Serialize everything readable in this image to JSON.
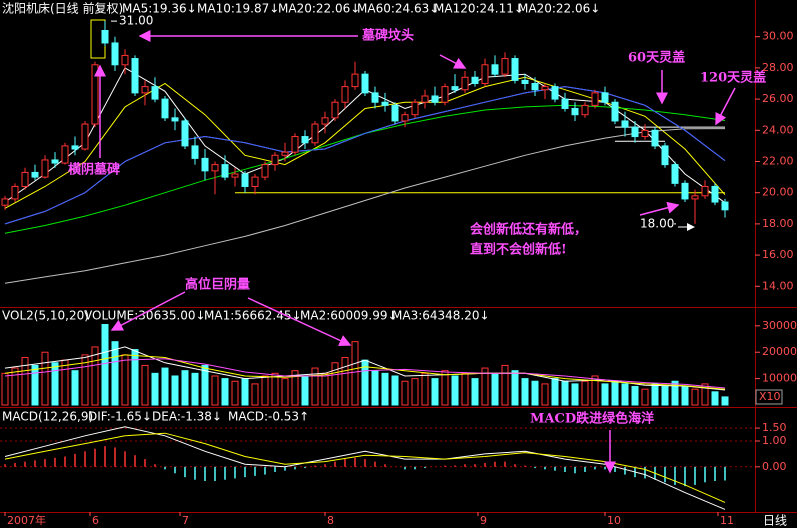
{
  "chart_data": [
    {
      "type": "candlestick",
      "title": "沈阳机床(日线 前复权)",
      "ylim": [
        12.8,
        31.2
      ],
      "yticks": [
        {
          "value": 14,
          "label": "14.00"
        },
        {
          "value": 16,
          "label": "16.00"
        },
        {
          "value": 18,
          "label": "18.00"
        },
        {
          "value": 20,
          "label": "20.00"
        },
        {
          "value": 22,
          "label": "22.00"
        },
        {
          "value": 24,
          "label": "24.00"
        },
        {
          "value": 26,
          "label": "26.00"
        },
        {
          "value": 28,
          "label": "28.00"
        },
        {
          "value": 30,
          "label": "30.00"
        }
      ],
      "xticks": [
        {
          "value": 0,
          "label": "2007年"
        },
        {
          "value": 8.5,
          "label": "6"
        },
        {
          "value": 17.5,
          "label": "7"
        },
        {
          "value": 32,
          "label": "8"
        },
        {
          "value": 47.3,
          "label": "9"
        },
        {
          "value": 60,
          "label": "10"
        },
        {
          "value": 71.3,
          "label": "11"
        }
      ],
      "period": "日线",
      "up_color": "#ff3232",
      "down_color": "#54ffff",
      "candles": [
        [
          19.2,
          19.8,
          18.9,
          19.6
        ],
        [
          19.6,
          20.6,
          19.4,
          20.4
        ],
        [
          20.4,
          21.6,
          20.2,
          21.3
        ],
        [
          21.3,
          21.8,
          20.8,
          21.0
        ],
        [
          21.0,
          22.4,
          20.9,
          22.1
        ],
        [
          22.1,
          22.6,
          21.6,
          21.9
        ],
        [
          21.9,
          23.2,
          21.8,
          23.0
        ],
        [
          23.0,
          23.6,
          22.4,
          22.8
        ],
        [
          22.8,
          24.6,
          22.7,
          24.4
        ],
        [
          24.4,
          28.4,
          24.2,
          28.2
        ],
        [
          30.4,
          31.0,
          29.4,
          29.6
        ],
        [
          29.6,
          30.0,
          27.8,
          28.2
        ],
        [
          28.2,
          29.2,
          27.6,
          28.8
        ],
        [
          28.6,
          28.8,
          26.2,
          26.4
        ],
        [
          26.4,
          27.2,
          25.6,
          26.8
        ],
        [
          26.8,
          27.4,
          25.8,
          26.0
        ],
        [
          26.0,
          26.2,
          24.6,
          24.8
        ],
        [
          24.8,
          25.4,
          24.0,
          24.6
        ],
        [
          24.6,
          24.8,
          22.8,
          23.0
        ],
        [
          23.0,
          23.6,
          21.8,
          22.2
        ],
        [
          22.2,
          22.8,
          20.8,
          21.4
        ],
        [
          21.4,
          22.0,
          19.9,
          21.8
        ],
        [
          21.8,
          22.4,
          20.8,
          21.0
        ],
        [
          21.0,
          21.6,
          20.4,
          21.2
        ],
        [
          21.2,
          21.4,
          20.0,
          20.4
        ],
        [
          20.4,
          21.2,
          19.9,
          21.0
        ],
        [
          21.0,
          22.0,
          20.8,
          21.8
        ],
        [
          21.8,
          22.6,
          21.4,
          22.4
        ],
        [
          22.4,
          23.2,
          22.0,
          22.6
        ],
        [
          22.6,
          23.8,
          22.4,
          23.6
        ],
        [
          23.6,
          24.0,
          22.8,
          23.2
        ],
        [
          23.2,
          24.6,
          23.0,
          24.4
        ],
        [
          24.4,
          25.2,
          23.8,
          24.8
        ],
        [
          24.8,
          26.0,
          24.6,
          25.8
        ],
        [
          25.8,
          27.2,
          25.4,
          26.8
        ],
        [
          26.8,
          28.4,
          26.6,
          27.6
        ],
        [
          27.6,
          27.8,
          26.2,
          26.4
        ],
        [
          26.4,
          26.8,
          25.4,
          25.8
        ],
        [
          25.8,
          26.4,
          25.2,
          25.6
        ],
        [
          25.6,
          25.8,
          24.4,
          24.6
        ],
        [
          24.6,
          25.2,
          24.2,
          25.0
        ],
        [
          25.0,
          26.0,
          24.8,
          25.8
        ],
        [
          25.8,
          26.6,
          25.4,
          26.2
        ],
        [
          26.2,
          26.8,
          25.6,
          25.8
        ],
        [
          25.8,
          27.0,
          25.6,
          26.8
        ],
        [
          26.8,
          27.6,
          26.4,
          26.6
        ],
        [
          26.6,
          27.8,
          26.4,
          27.4
        ],
        [
          27.4,
          27.8,
          26.8,
          27.0
        ],
        [
          27.0,
          28.6,
          26.8,
          28.2
        ],
        [
          28.2,
          28.8,
          27.4,
          27.6
        ],
        [
          27.6,
          29.0,
          27.4,
          28.6
        ],
        [
          28.6,
          28.8,
          27.0,
          27.2
        ],
        [
          27.2,
          27.6,
          26.6,
          27.0
        ],
        [
          27.0,
          27.4,
          26.2,
          26.6
        ],
        [
          26.6,
          27.0,
          26.0,
          26.8
        ],
        [
          26.8,
          27.0,
          25.8,
          26.0
        ],
        [
          26.0,
          26.4,
          25.2,
          25.4
        ],
        [
          25.4,
          25.8,
          24.6,
          25.0
        ],
        [
          25.0,
          25.8,
          24.8,
          25.6
        ],
        [
          25.6,
          26.6,
          25.4,
          26.4
        ],
        [
          26.4,
          26.8,
          25.6,
          25.8
        ],
        [
          25.8,
          26.0,
          24.4,
          24.6
        ],
        [
          24.6,
          25.2,
          23.6,
          24.2
        ],
        [
          24.2,
          24.6,
          23.2,
          23.6
        ],
        [
          23.6,
          24.4,
          23.4,
          24.0
        ],
        [
          24.0,
          24.2,
          22.8,
          23.0
        ],
        [
          23.0,
          23.2,
          21.6,
          21.8
        ],
        [
          21.8,
          22.0,
          20.4,
          20.6
        ],
        [
          20.6,
          20.8,
          19.4,
          19.6
        ],
        [
          19.6,
          20.2,
          18.0,
          19.8
        ],
        [
          19.8,
          20.8,
          19.6,
          20.4
        ],
        [
          20.4,
          20.6,
          19.2,
          19.4
        ],
        [
          19.4,
          19.6,
          18.4,
          18.9
        ]
      ],
      "ma_x": [
        0,
        4,
        8,
        12,
        16,
        20,
        24,
        28,
        32,
        36,
        40,
        44,
        48,
        52,
        56,
        60,
        64,
        68,
        72
      ],
      "series": [
        {
          "name": "MA5:19.36↓",
          "color": "#ffffff",
          "values": [
            19.4,
            21.2,
            23.2,
            28.0,
            26.5,
            23.0,
            21.2,
            22.2,
            24.2,
            26.6,
            25.4,
            26.2,
            27.4,
            27.6,
            26.0,
            25.8,
            24.0,
            21.2,
            19.36
          ]
        },
        {
          "name": "MA10:19.87↓",
          "color": "#ffff00",
          "values": [
            19.0,
            20.4,
            22.0,
            25.5,
            27.0,
            25.0,
            22.4,
            21.8,
            23.2,
            25.4,
            25.8,
            25.8,
            26.8,
            27.4,
            26.6,
            25.8,
            24.9,
            22.8,
            19.87
          ]
        },
        {
          "name": "MA20:22.06↓",
          "color": "#ff80ff",
          "values": [
            18.0,
            18.8,
            20.0,
            22.0,
            23.2,
            23.6,
            23.2,
            22.6,
            22.8,
            23.8,
            24.6,
            25.2,
            25.8,
            26.4,
            26.8,
            26.4,
            25.6,
            24.0,
            22.06
          ]
        },
        {
          "name": "MA60:24.63↓",
          "color": "#00e600",
          "values": [
            17.4,
            17.9,
            18.5,
            19.2,
            20.0,
            20.8,
            21.5,
            22.2,
            23.0,
            23.8,
            24.4,
            24.9,
            25.3,
            25.5,
            25.6,
            25.5,
            25.3,
            25.0,
            24.63
          ]
        },
        {
          "name": "MA120:24.11↓",
          "color": "#c0c0c0",
          "values": [
            14.2,
            14.6,
            15.0,
            15.5,
            16.0,
            16.6,
            17.2,
            17.9,
            18.7,
            19.5,
            20.3,
            21.0,
            21.7,
            22.4,
            23.0,
            23.5,
            23.9,
            24.1,
            24.11
          ]
        },
        {
          "name": "MA20:22.06↓",
          "color": "#3366ff",
          "values": [
            18.0,
            18.8,
            20.0,
            22.0,
            23.2,
            23.6,
            23.2,
            22.6,
            22.8,
            23.8,
            24.6,
            25.2,
            25.8,
            26.4,
            26.8,
            26.4,
            25.6,
            24.0,
            22.06
          ]
        }
      ],
      "hlines": [
        {
          "value": 20.0,
          "from": 23,
          "to": 72,
          "color": "#ffff00"
        },
        {
          "value": 24.2,
          "from": 61,
          "to": 72,
          "color": "#ffffff"
        },
        {
          "value": 23.3,
          "from": 61,
          "to": 66,
          "color": "#ffffff"
        }
      ],
      "high_label": {
        "value": 31.0,
        "label": "31.00"
      },
      "low_label": {
        "value": 18.0,
        "label": "18.00"
      },
      "annotations": [
        "墓碑坟头",
        "横阴墓碑",
        "60天灵盖",
        "120天灵盖",
        "会创新低还有新低，",
        "直到不会创新低!"
      ]
    },
    {
      "type": "volume",
      "title": "VOL2(5,10,20)",
      "volume_label": "VOLUME:30635.00↓",
      "unit_label": "X10",
      "ylim": [
        0,
        36000
      ],
      "yticks": [
        10000,
        20000,
        30000
      ],
      "values": [
        12000,
        14000,
        18000,
        15000,
        20000,
        16000,
        17000,
        13000,
        19000,
        22000,
        30500,
        24000,
        19000,
        21000,
        15000,
        12000,
        14000,
        11000,
        13000,
        12000,
        15000,
        11000,
        10000,
        9000,
        10000,
        8000,
        11000,
        12000,
        10000,
        13000,
        11000,
        14000,
        12000,
        16000,
        18000,
        24000,
        17000,
        13000,
        12000,
        11000,
        9000,
        10000,
        12000,
        10000,
        13000,
        11000,
        12000,
        10000,
        14000,
        12000,
        15000,
        13000,
        10000,
        9000,
        8000,
        10000,
        9000,
        8000,
        9000,
        11000,
        8000,
        9000,
        8000,
        7000,
        6000,
        8000,
        7000,
        9000,
        7000,
        6000,
        8000,
        5000,
        3063.5
      ],
      "series": [
        {
          "name": "MA1:56662.45↓",
          "color": "#ffffff",
          "values": [
            14000,
            16000,
            18000,
            22000,
            16000,
            13000,
            10000,
            11000,
            12000,
            17000,
            11000,
            11500,
            12000,
            12000,
            9000,
            9500,
            7500,
            7200,
            5666.245
          ]
        },
        {
          "name": "MA2:60009.99↓",
          "color": "#ffff00",
          "values": [
            12000,
            14000,
            16000,
            19000,
            18000,
            14000,
            11000,
            10500,
            11500,
            14500,
            13000,
            11500,
            12000,
            12000,
            10000,
            9000,
            8000,
            7300,
            6000.999
          ]
        },
        {
          "name": "MA3:64348.20↓",
          "color": "#ff50ff",
          "values": [
            11000,
            12500,
            14500,
            17000,
            17500,
            15500,
            12500,
            11000,
            11000,
            13000,
            13500,
            12500,
            12000,
            12000,
            11000,
            9500,
            8500,
            7800,
            6434.82
          ]
        }
      ],
      "annotations": [
        "高位巨阴量"
      ]
    },
    {
      "type": "macd",
      "title": "MACD(12,26,9)",
      "hist_label": "MACD:-0.53↑",
      "hist_label_color": "#ff50ff",
      "ylim": [
        -1.75,
        2.2
      ],
      "grid": true,
      "yticks": [
        {
          "value": 0,
          "label": "0.00"
        },
        {
          "value": 1,
          "label": "1.00"
        },
        {
          "value": 1.5,
          "label": "1.50"
        }
      ],
      "pos_color": "#ff3232",
      "neg_color": "#54ffff",
      "values": [
        0.1,
        0.15,
        0.2,
        0.25,
        0.3,
        0.35,
        0.4,
        0.5,
        0.6,
        0.7,
        0.8,
        0.75,
        0.6,
        0.45,
        0.3,
        0.1,
        -0.1,
        -0.25,
        -0.4,
        -0.5,
        -0.55,
        -0.55,
        -0.5,
        -0.45,
        -0.4,
        -0.35,
        -0.3,
        -0.2,
        -0.15,
        -0.1,
        -0.05,
        0.05,
        0.1,
        0.2,
        0.3,
        0.35,
        0.3,
        0.2,
        0.1,
        0.0,
        -0.1,
        -0.1,
        -0.05,
        0.0,
        0.05,
        0.05,
        0.1,
        0.1,
        0.15,
        0.2,
        0.2,
        0.1,
        0.05,
        -0.05,
        -0.1,
        -0.15,
        -0.2,
        -0.25,
        -0.2,
        -0.1,
        -0.1,
        -0.2,
        -0.3,
        -0.4,
        -0.45,
        -0.5,
        -0.6,
        -0.7,
        -0.75,
        -0.7,
        -0.6,
        -0.55,
        -0.53
      ],
      "series": [
        {
          "name": "DIF:-1.65↓",
          "color": "#ffffff",
          "values": [
            0.4,
            0.8,
            1.2,
            1.55,
            1.2,
            0.6,
            0.1,
            0.0,
            0.3,
            0.6,
            0.3,
            0.3,
            0.5,
            0.6,
            0.3,
            0.1,
            -0.3,
            -1.0,
            -1.65
          ]
        },
        {
          "name": "DEA:-1.38↓",
          "color": "#ffff00",
          "values": [
            0.3,
            0.6,
            0.9,
            1.2,
            1.3,
            0.9,
            0.4,
            0.1,
            0.2,
            0.45,
            0.4,
            0.3,
            0.4,
            0.55,
            0.4,
            0.2,
            -0.1,
            -0.7,
            -1.38
          ]
        }
      ],
      "annotations": [
        "MACD跌进绿色海洋"
      ]
    }
  ]
}
